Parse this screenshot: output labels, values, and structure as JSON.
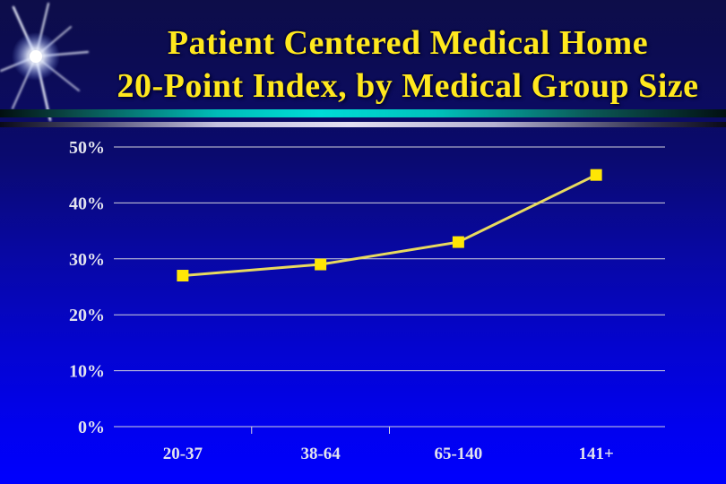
{
  "slide": {
    "title_line1": "Patient Centered Medical Home",
    "title_line2": "20-Point Index, by Medical Group Size",
    "title_color": "#ffe81e",
    "background_top_color": "#0d0d49",
    "background_bottom_color": "#0000fe",
    "divider_teal_color": "#00dcd6",
    "divider_purple_color": "#e2dff2"
  },
  "decor": {
    "starburst_icon": "starburst-icon",
    "starburst_color": "#ffffff"
  },
  "chart_data": {
    "type": "line",
    "title": "Patient Centered Medical Home 20-Point Index, by Medical Group Size",
    "categories": [
      "20-37",
      "38-64",
      "65-140",
      "141+"
    ],
    "values": [
      27,
      29,
      33,
      45
    ],
    "xlabel": "",
    "ylabel": "",
    "ylim": [
      0,
      50
    ],
    "yticks": [
      0,
      10,
      20,
      30,
      40,
      50
    ],
    "ytick_labels": [
      "0%",
      "10%",
      "20%",
      "30%",
      "40%",
      "50%"
    ],
    "grid": true,
    "legend": "none",
    "marker": "square",
    "line_color": "#e8da5e",
    "marker_color": "#ffe605",
    "gridline_color": "#d4d4de",
    "axis_text_color": "#e2e3ee"
  }
}
